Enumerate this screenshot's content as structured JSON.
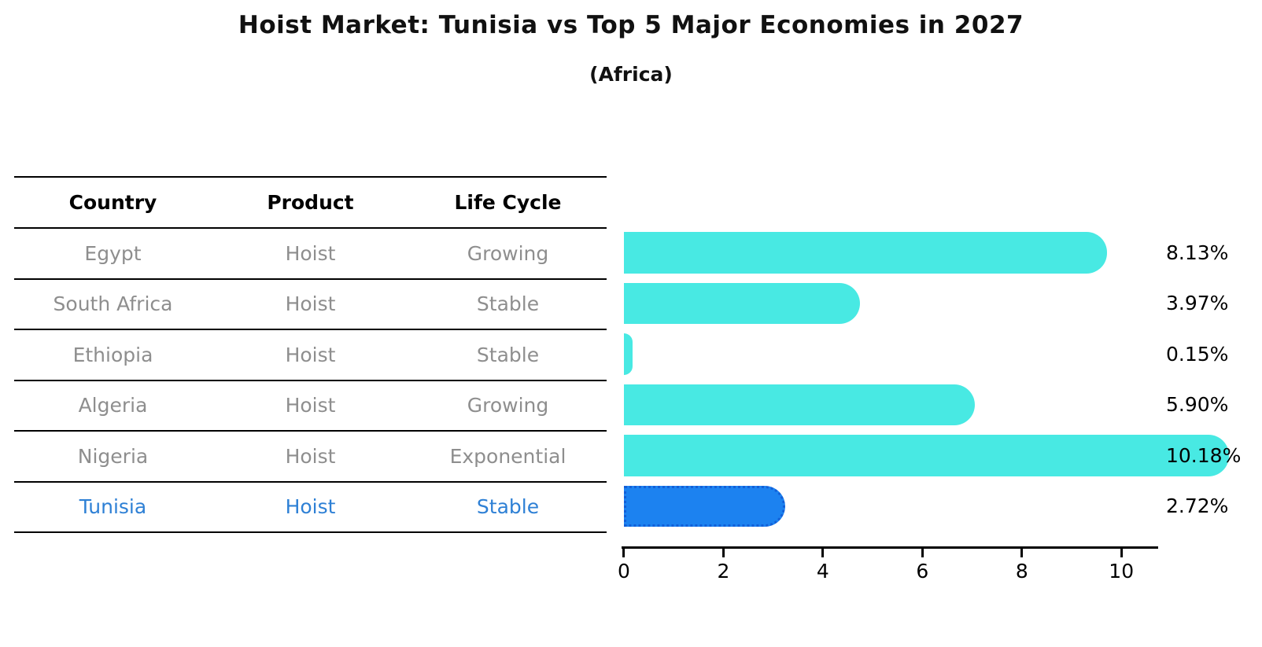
{
  "title": "Hoist Market: Tunisia vs Top 5 Major Economies in 2027",
  "subtitle": "(Africa)",
  "colors": {
    "bar_default": "#48e9e3",
    "bar_highlight": "#1c82f0",
    "bar_highlight_border": "#125fd8",
    "highlight_text": "#2e80d5",
    "row_text": "#8e8e8e",
    "title_text": "#111111",
    "axis": "#000000"
  },
  "table": {
    "headers": [
      "Country",
      "Product",
      "Life Cycle"
    ],
    "rows": [
      {
        "country": "Egypt",
        "product": "Hoist",
        "life_cycle": "Growing"
      },
      {
        "country": "South Africa",
        "product": "Hoist",
        "life_cycle": "Stable"
      },
      {
        "country": "Ethiopia",
        "product": "Hoist",
        "life_cycle": "Stable"
      },
      {
        "country": "Algeria",
        "product": "Hoist",
        "life_cycle": "Growing"
      },
      {
        "country": "Nigeria",
        "product": "Hoist",
        "life_cycle": "Exponential"
      },
      {
        "country": "Tunisia",
        "product": "Hoist",
        "life_cycle": "Stable",
        "highlight": true
      }
    ]
  },
  "chart_data": {
    "type": "bar",
    "orientation": "horizontal",
    "title": "Hoist Market: Tunisia vs Top 5 Major Economies in 2027",
    "subtitle": "(Africa)",
    "categories": [
      "Egypt",
      "South Africa",
      "Ethiopia",
      "Algeria",
      "Nigeria",
      "Tunisia"
    ],
    "values": [
      8.13,
      3.97,
      0.15,
      5.9,
      10.18,
      2.72
    ],
    "value_labels": [
      "8.13%",
      "3.97%",
      "0.15%",
      "5.90%",
      "10.18%",
      "2.72%"
    ],
    "xlabel": "",
    "ylabel": "",
    "xticks": [
      0,
      2,
      4,
      6,
      8,
      10
    ],
    "xlim": [
      0,
      10.74
    ],
    "grid": false,
    "legend": false,
    "highlight_index": 5,
    "bar_color": "#48e9e3",
    "highlight_bar_color": "#1c82f0",
    "highlight_border_color": "#125fd8"
  }
}
